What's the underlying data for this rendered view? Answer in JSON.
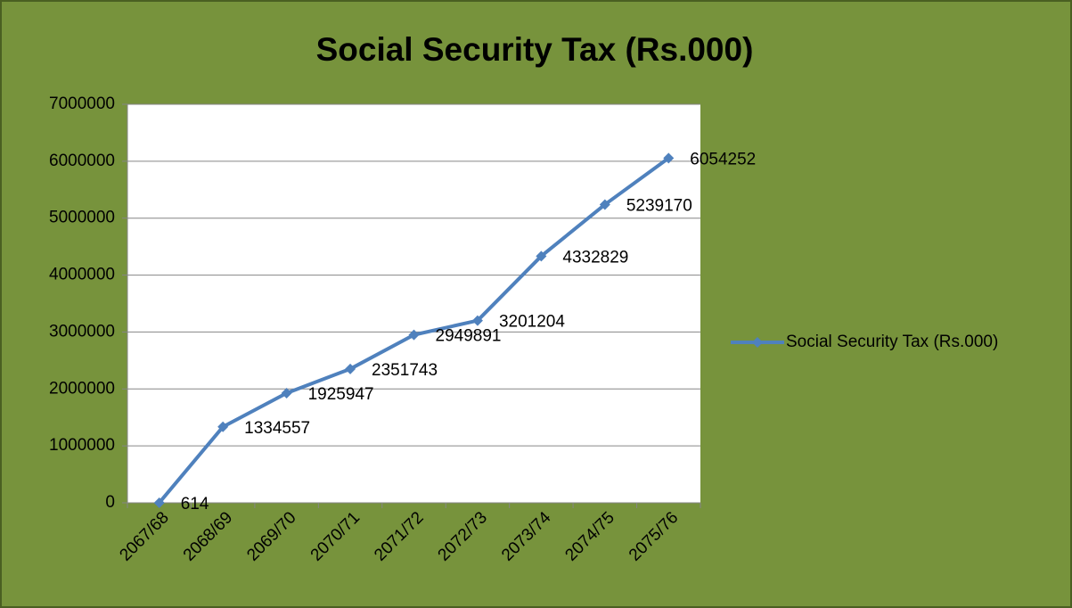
{
  "chart_data": {
    "type": "line",
    "title": "Social Security Tax (Rs.000)",
    "categories": [
      "2067/68",
      "2068/69",
      "2069/70",
      "2070/71",
      "2071/72",
      "2072/73",
      "2073/74",
      "2074/75",
      "2075/76"
    ],
    "series": [
      {
        "name": "Social Security Tax (Rs.000)",
        "color": "#4f81bd",
        "values": [
          614,
          1334557,
          1925947,
          2351743,
          2949891,
          3201204,
          4332829,
          5239170,
          6054252
        ]
      }
    ],
    "ylim": [
      0,
      7000000
    ],
    "yticks": [
      0,
      1000000,
      2000000,
      3000000,
      4000000,
      5000000,
      6000000,
      7000000
    ],
    "grid": true,
    "legend": "right"
  }
}
